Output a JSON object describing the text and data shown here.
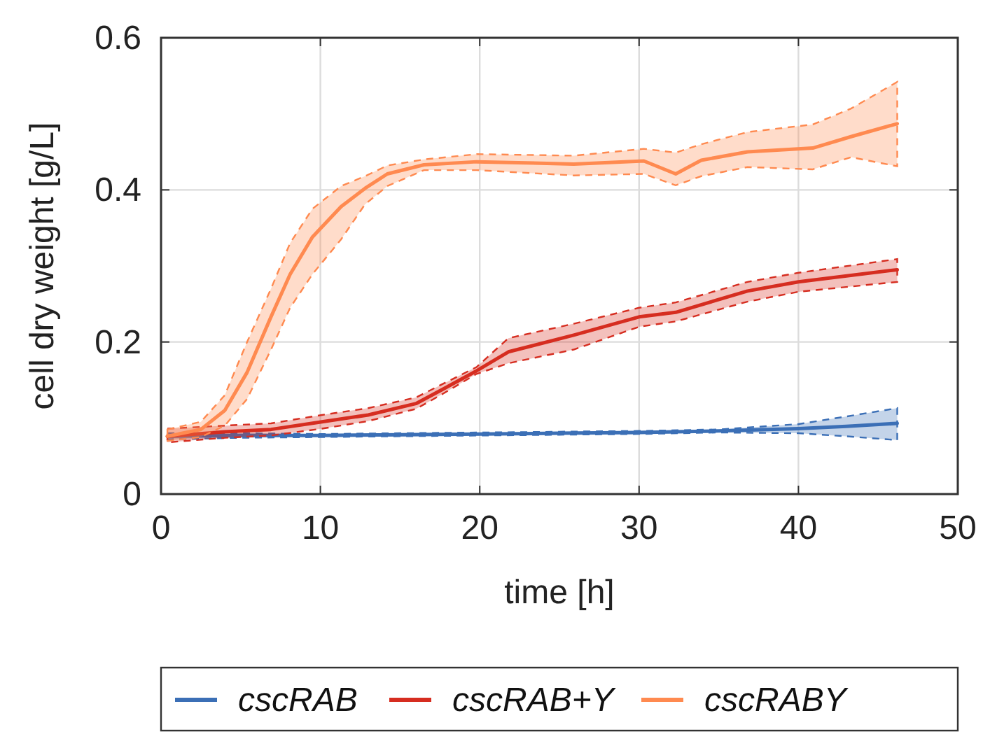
{
  "chart_data": {
    "type": "line",
    "xlabel": "time [h]",
    "ylabel": "cell dry weight [g/L]",
    "xlim": [
      0,
      50
    ],
    "ylim": [
      0,
      0.6
    ],
    "xticks": [
      0,
      10,
      20,
      30,
      40,
      50
    ],
    "yticks": [
      0,
      0.2,
      0.4,
      0.6
    ],
    "grid": true,
    "legend": "bottom",
    "line_style": "solid",
    "marker": "none",
    "series": [
      {
        "name": "cscRAB",
        "color": "#3b6fb6",
        "x": [
          0.4,
          5,
          10,
          15,
          20,
          25,
          30,
          35,
          40,
          43,
          46.2
        ],
        "values": [
          0.076,
          0.077,
          0.077,
          0.078,
          0.079,
          0.08,
          0.081,
          0.083,
          0.086,
          0.089,
          0.093
        ],
        "lower": [
          0.072,
          0.074,
          0.075,
          0.076,
          0.077,
          0.078,
          0.079,
          0.081,
          0.08,
          0.076,
          0.071
        ],
        "upper": [
          0.08,
          0.08,
          0.079,
          0.08,
          0.081,
          0.082,
          0.083,
          0.085,
          0.092,
          0.102,
          0.113
        ]
      },
      {
        "name": "cscRAB+Y",
        "color": "#d62d20",
        "x": [
          0.4,
          4,
          6.9,
          10.1,
          13,
          16,
          17.7,
          19.8,
          21.8,
          25.9,
          30,
          32.3,
          36.8,
          40,
          46.2
        ],
        "values": [
          0.076,
          0.082,
          0.085,
          0.095,
          0.104,
          0.119,
          0.138,
          0.162,
          0.187,
          0.209,
          0.233,
          0.239,
          0.267,
          0.279,
          0.295
        ],
        "lower": [
          0.068,
          0.074,
          0.077,
          0.086,
          0.096,
          0.112,
          0.132,
          0.158,
          0.172,
          0.19,
          0.22,
          0.227,
          0.253,
          0.266,
          0.279
        ],
        "upper": [
          0.086,
          0.09,
          0.093,
          0.104,
          0.113,
          0.127,
          0.145,
          0.167,
          0.205,
          0.224,
          0.245,
          0.252,
          0.279,
          0.291,
          0.309
        ]
      },
      {
        "name": "cscRABY",
        "color": "#ff8a50",
        "x": [
          0.4,
          2.5,
          4,
          5.4,
          6.9,
          8.1,
          9.5,
          11.3,
          12.8,
          14.2,
          16.5,
          19.8,
          25.9,
          30.3,
          32.3,
          33.9,
          36.8,
          40.9,
          43.3,
          46.2
        ],
        "values": [
          0.076,
          0.085,
          0.11,
          0.16,
          0.233,
          0.289,
          0.338,
          0.378,
          0.402,
          0.421,
          0.433,
          0.437,
          0.434,
          0.438,
          0.421,
          0.439,
          0.45,
          0.455,
          0.47,
          0.487
        ],
        "lower": [
          0.07,
          0.075,
          0.09,
          0.125,
          0.19,
          0.245,
          0.289,
          0.335,
          0.381,
          0.405,
          0.426,
          0.426,
          0.419,
          0.421,
          0.406,
          0.418,
          0.43,
          0.427,
          0.443,
          0.431
        ],
        "upper": [
          0.085,
          0.095,
          0.13,
          0.2,
          0.27,
          0.33,
          0.375,
          0.405,
          0.418,
          0.432,
          0.44,
          0.447,
          0.445,
          0.454,
          0.449,
          0.46,
          0.476,
          0.486,
          0.507,
          0.542
        ]
      }
    ]
  }
}
